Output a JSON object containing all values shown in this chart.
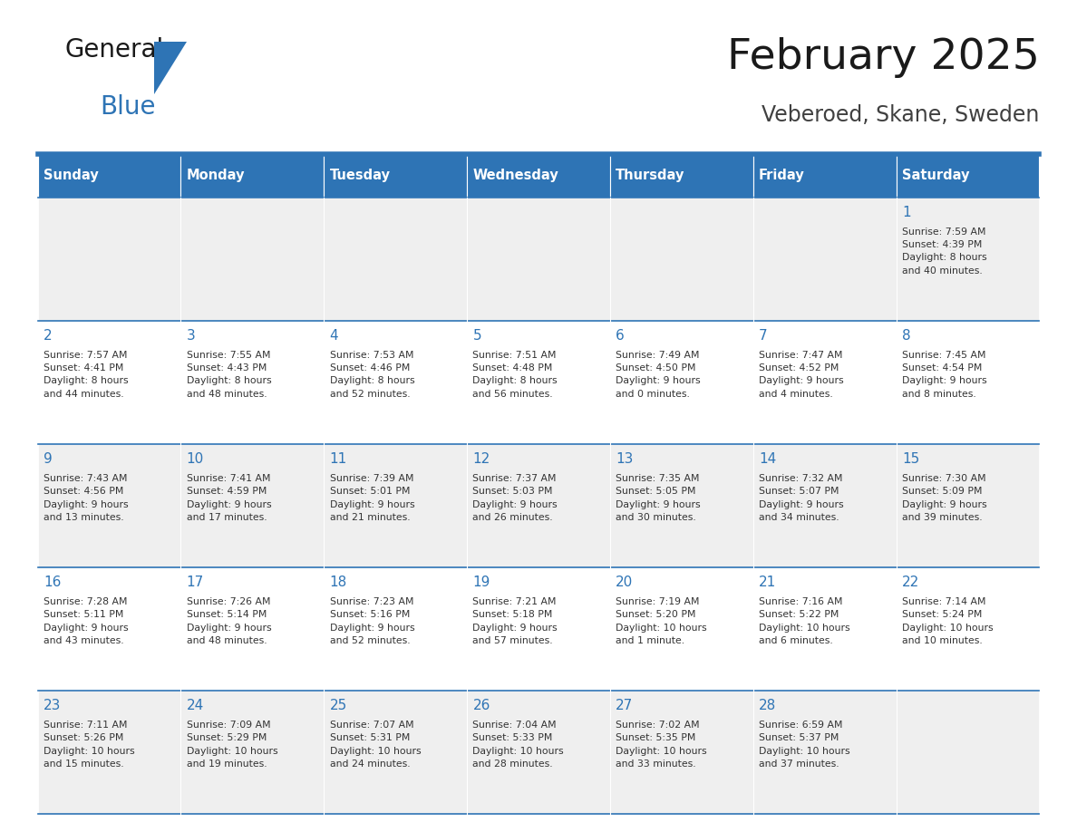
{
  "title": "February 2025",
  "subtitle": "Veberoed, Skane, Sweden",
  "header_bg": "#2E74B5",
  "header_text_color": "#FFFFFF",
  "cell_bg_odd": "#EFEFEF",
  "cell_bg_even": "#FFFFFF",
  "border_color": "#2E74B5",
  "title_color": "#1a1a1a",
  "subtitle_color": "#404040",
  "day_number_color": "#2E74B5",
  "cell_text_color": "#333333",
  "logo_black": "#1a1a1a",
  "logo_blue": "#2E74B5",
  "days_of_week": [
    "Sunday",
    "Monday",
    "Tuesday",
    "Wednesday",
    "Thursday",
    "Friday",
    "Saturday"
  ],
  "weeks": [
    [
      {
        "day": null,
        "info": null
      },
      {
        "day": null,
        "info": null
      },
      {
        "day": null,
        "info": null
      },
      {
        "day": null,
        "info": null
      },
      {
        "day": null,
        "info": null
      },
      {
        "day": null,
        "info": null
      },
      {
        "day": 1,
        "info": "Sunrise: 7:59 AM\nSunset: 4:39 PM\nDaylight: 8 hours\nand 40 minutes."
      }
    ],
    [
      {
        "day": 2,
        "info": "Sunrise: 7:57 AM\nSunset: 4:41 PM\nDaylight: 8 hours\nand 44 minutes."
      },
      {
        "day": 3,
        "info": "Sunrise: 7:55 AM\nSunset: 4:43 PM\nDaylight: 8 hours\nand 48 minutes."
      },
      {
        "day": 4,
        "info": "Sunrise: 7:53 AM\nSunset: 4:46 PM\nDaylight: 8 hours\nand 52 minutes."
      },
      {
        "day": 5,
        "info": "Sunrise: 7:51 AM\nSunset: 4:48 PM\nDaylight: 8 hours\nand 56 minutes."
      },
      {
        "day": 6,
        "info": "Sunrise: 7:49 AM\nSunset: 4:50 PM\nDaylight: 9 hours\nand 0 minutes."
      },
      {
        "day": 7,
        "info": "Sunrise: 7:47 AM\nSunset: 4:52 PM\nDaylight: 9 hours\nand 4 minutes."
      },
      {
        "day": 8,
        "info": "Sunrise: 7:45 AM\nSunset: 4:54 PM\nDaylight: 9 hours\nand 8 minutes."
      }
    ],
    [
      {
        "day": 9,
        "info": "Sunrise: 7:43 AM\nSunset: 4:56 PM\nDaylight: 9 hours\nand 13 minutes."
      },
      {
        "day": 10,
        "info": "Sunrise: 7:41 AM\nSunset: 4:59 PM\nDaylight: 9 hours\nand 17 minutes."
      },
      {
        "day": 11,
        "info": "Sunrise: 7:39 AM\nSunset: 5:01 PM\nDaylight: 9 hours\nand 21 minutes."
      },
      {
        "day": 12,
        "info": "Sunrise: 7:37 AM\nSunset: 5:03 PM\nDaylight: 9 hours\nand 26 minutes."
      },
      {
        "day": 13,
        "info": "Sunrise: 7:35 AM\nSunset: 5:05 PM\nDaylight: 9 hours\nand 30 minutes."
      },
      {
        "day": 14,
        "info": "Sunrise: 7:32 AM\nSunset: 5:07 PM\nDaylight: 9 hours\nand 34 minutes."
      },
      {
        "day": 15,
        "info": "Sunrise: 7:30 AM\nSunset: 5:09 PM\nDaylight: 9 hours\nand 39 minutes."
      }
    ],
    [
      {
        "day": 16,
        "info": "Sunrise: 7:28 AM\nSunset: 5:11 PM\nDaylight: 9 hours\nand 43 minutes."
      },
      {
        "day": 17,
        "info": "Sunrise: 7:26 AM\nSunset: 5:14 PM\nDaylight: 9 hours\nand 48 minutes."
      },
      {
        "day": 18,
        "info": "Sunrise: 7:23 AM\nSunset: 5:16 PM\nDaylight: 9 hours\nand 52 minutes."
      },
      {
        "day": 19,
        "info": "Sunrise: 7:21 AM\nSunset: 5:18 PM\nDaylight: 9 hours\nand 57 minutes."
      },
      {
        "day": 20,
        "info": "Sunrise: 7:19 AM\nSunset: 5:20 PM\nDaylight: 10 hours\nand 1 minute."
      },
      {
        "day": 21,
        "info": "Sunrise: 7:16 AM\nSunset: 5:22 PM\nDaylight: 10 hours\nand 6 minutes."
      },
      {
        "day": 22,
        "info": "Sunrise: 7:14 AM\nSunset: 5:24 PM\nDaylight: 10 hours\nand 10 minutes."
      }
    ],
    [
      {
        "day": 23,
        "info": "Sunrise: 7:11 AM\nSunset: 5:26 PM\nDaylight: 10 hours\nand 15 minutes."
      },
      {
        "day": 24,
        "info": "Sunrise: 7:09 AM\nSunset: 5:29 PM\nDaylight: 10 hours\nand 19 minutes."
      },
      {
        "day": 25,
        "info": "Sunrise: 7:07 AM\nSunset: 5:31 PM\nDaylight: 10 hours\nand 24 minutes."
      },
      {
        "day": 26,
        "info": "Sunrise: 7:04 AM\nSunset: 5:33 PM\nDaylight: 10 hours\nand 28 minutes."
      },
      {
        "day": 27,
        "info": "Sunrise: 7:02 AM\nSunset: 5:35 PM\nDaylight: 10 hours\nand 33 minutes."
      },
      {
        "day": 28,
        "info": "Sunrise: 6:59 AM\nSunset: 5:37 PM\nDaylight: 10 hours\nand 37 minutes."
      },
      {
        "day": null,
        "info": null
      }
    ]
  ]
}
